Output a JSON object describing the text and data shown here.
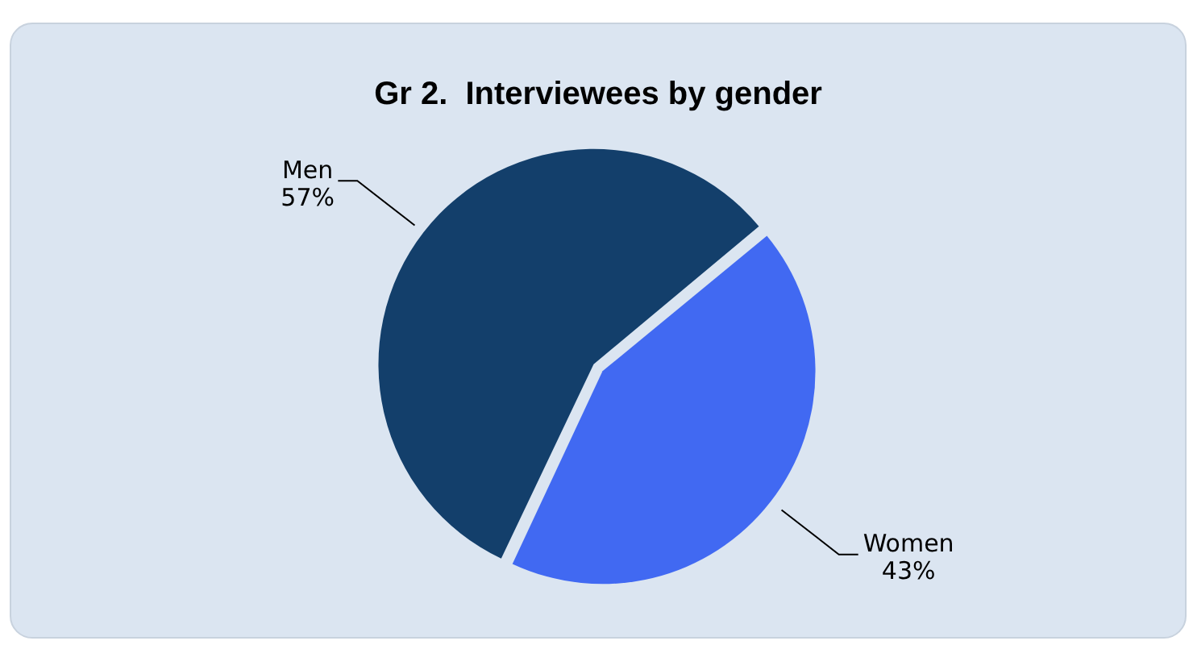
{
  "chart_data": {
    "type": "pie",
    "title": "Gr 2.  Interviewees by gender",
    "categories": [
      "Men",
      "Women"
    ],
    "values": [
      57,
      43
    ],
    "colors": [
      "#133f6b",
      "#4169f2"
    ],
    "value_labels": [
      "57%",
      "43%"
    ],
    "legend": false
  }
}
